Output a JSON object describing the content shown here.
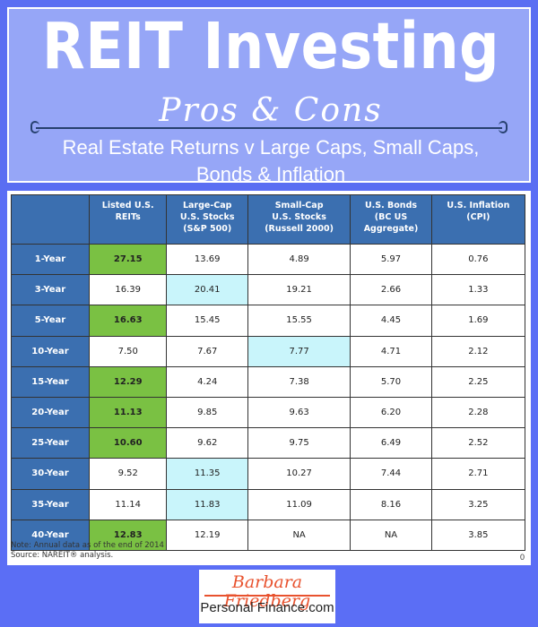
{
  "header": {
    "title": "REIT Investing",
    "subtitle": "Pros & Cons",
    "tagline_line1": "Real Estate Returns v Large Caps, Small Caps,",
    "tagline_line2": "Bonds & Inflation"
  },
  "table": {
    "columns": [
      [
        "Listed U.S.",
        "REITs"
      ],
      [
        "Large-Cap",
        "U.S. Stocks",
        "(S&P 500)"
      ],
      [
        "Small-Cap",
        "U.S. Stocks",
        "(Russell 2000)"
      ],
      [
        "U.S. Bonds",
        "(BC US",
        "Aggregate)"
      ],
      [
        "U.S. Inflation",
        "(CPI)"
      ]
    ],
    "rows": [
      {
        "period": "1-Year",
        "values": [
          "27.15",
          "13.69",
          "4.89",
          "5.97",
          "0.76"
        ],
        "highlight": [
          0,
          null
        ]
      },
      {
        "period": "3-Year",
        "values": [
          "16.39",
          "20.41",
          "19.21",
          "2.66",
          "1.33"
        ],
        "highlight": [
          1,
          null
        ]
      },
      {
        "period": "5-Year",
        "values": [
          "16.63",
          "15.45",
          "15.55",
          "4.45",
          "1.69"
        ],
        "highlight": [
          0,
          null
        ]
      },
      {
        "period": "10-Year",
        "values": [
          "7.50",
          "7.67",
          "7.77",
          "4.71",
          "2.12"
        ],
        "highlight": [
          2,
          null
        ]
      },
      {
        "period": "15-Year",
        "values": [
          "12.29",
          "4.24",
          "7.38",
          "5.70",
          "2.25"
        ],
        "highlight": [
          0,
          null
        ]
      },
      {
        "period": "20-Year",
        "values": [
          "11.13",
          "9.85",
          "9.63",
          "6.20",
          "2.28"
        ],
        "highlight": [
          0,
          null
        ]
      },
      {
        "period": "25-Year",
        "values": [
          "10.60",
          "9.62",
          "9.75",
          "6.49",
          "2.52"
        ],
        "highlight": [
          0,
          null
        ]
      },
      {
        "period": "30-Year",
        "values": [
          "9.52",
          "11.35",
          "10.27",
          "7.44",
          "2.71"
        ],
        "highlight": [
          1,
          null
        ]
      },
      {
        "period": "35-Year",
        "values": [
          "11.14",
          "11.83",
          "11.09",
          "8.16",
          "3.25"
        ],
        "highlight": [
          1,
          null
        ]
      },
      {
        "period": "40-Year",
        "values": [
          "12.83",
          "12.19",
          "NA",
          "NA",
          "3.85"
        ],
        "highlight": [
          0,
          null
        ]
      }
    ],
    "note": "Note: Annual data as of the end of 2014",
    "source": "Source: NAREIT® analysis.",
    "page_number": "0"
  },
  "colors": {
    "best_reit": "#7ac143",
    "best_other": "#c9f5fb",
    "header_blue": "#3b6fb0"
  },
  "footer": {
    "logo_name": "Barbara Friedberg",
    "logo_sub": "Personal Finance.com"
  }
}
